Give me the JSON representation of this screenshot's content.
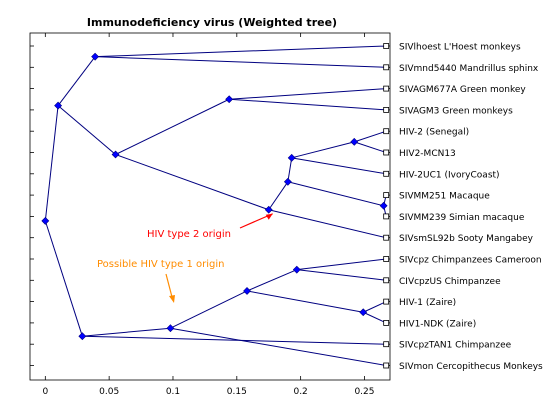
{
  "chart_data": {
    "type": "phylogenetic-tree",
    "title": "Immunodeficiency virus (Weighted tree)",
    "xlabel": "",
    "ylabel": "",
    "xlim": [
      -0.012,
      0.27
    ],
    "xticks": [
      "0",
      "0.05",
      "0.1",
      "0.15",
      "0.2",
      "0.25"
    ],
    "xtick_values": [
      0,
      0.05,
      0.1,
      0.15,
      0.2,
      0.25
    ],
    "grid": false,
    "leaf_x": 0.267,
    "leaves": [
      "SIVlhoest L'Hoest monkeys",
      "SIVmnd5440 Mandrillus sphinx",
      "SIVAGM677A Green monkey",
      "SIVAGM3 Green monkeys",
      "HIV-2 (Senegal)",
      "HIV2-MCN13",
      "HIV-2UC1 (IvoryCoast)",
      "SIVMM251 Macaque",
      "SIVMM239 Simian macaque",
      "SIVsmSL92b Sooty Mangabey",
      "SIVcpz Chimpanzees Cameroon",
      "CIVcpzUS Chimpanzee",
      "HIV-1 (Zaire)",
      "HIV1-NDK (Zaire)",
      "SIVcpzTAN1 Chimpanzee",
      "SIVmon Cercopithecus Monkeys"
    ],
    "nodes": [
      {
        "id": "n0",
        "x": 0.0,
        "children": [
          "n1",
          "n12"
        ]
      },
      {
        "id": "n1",
        "x": 0.01,
        "children": [
          "n2",
          "n3"
        ]
      },
      {
        "id": "n2",
        "x": 0.039,
        "children": [
          "L0",
          "L1"
        ]
      },
      {
        "id": "n3",
        "x": 0.055,
        "children": [
          "n4",
          "n5"
        ]
      },
      {
        "id": "n4",
        "x": 0.144,
        "children": [
          "L2",
          "L3"
        ]
      },
      {
        "id": "n5",
        "x": 0.175,
        "children": [
          "n6",
          "L9"
        ]
      },
      {
        "id": "n6",
        "x": 0.19,
        "children": [
          "n7",
          "n9"
        ]
      },
      {
        "id": "n7",
        "x": 0.193,
        "children": [
          "n8",
          "L6"
        ]
      },
      {
        "id": "n8",
        "x": 0.242,
        "children": [
          "L4",
          "L5"
        ]
      },
      {
        "id": "n9",
        "x": 0.265,
        "children": [
          "L7",
          "L8"
        ]
      },
      {
        "id": "n12",
        "x": 0.029,
        "children": [
          "n13",
          "L14"
        ]
      },
      {
        "id": "n13",
        "x": 0.098,
        "children": [
          "n14",
          "L15"
        ]
      },
      {
        "id": "n14",
        "x": 0.158,
        "children": [
          "n15",
          "n16"
        ]
      },
      {
        "id": "n15",
        "x": 0.197,
        "children": [
          "L10",
          "L11"
        ]
      },
      {
        "id": "n16",
        "x": 0.249,
        "children": [
          "L12",
          "L13"
        ]
      }
    ],
    "annotations": [
      {
        "text": "HIV type 2 origin",
        "color": "#ff0000",
        "target_node": "n5"
      },
      {
        "text": "Possible HIV type 1 origin",
        "color": "#ff8c00",
        "target_node": "n13"
      }
    ],
    "colors": {
      "branch": "#000080",
      "node": "#0000ff",
      "leaf_marker": "#000000"
    }
  }
}
